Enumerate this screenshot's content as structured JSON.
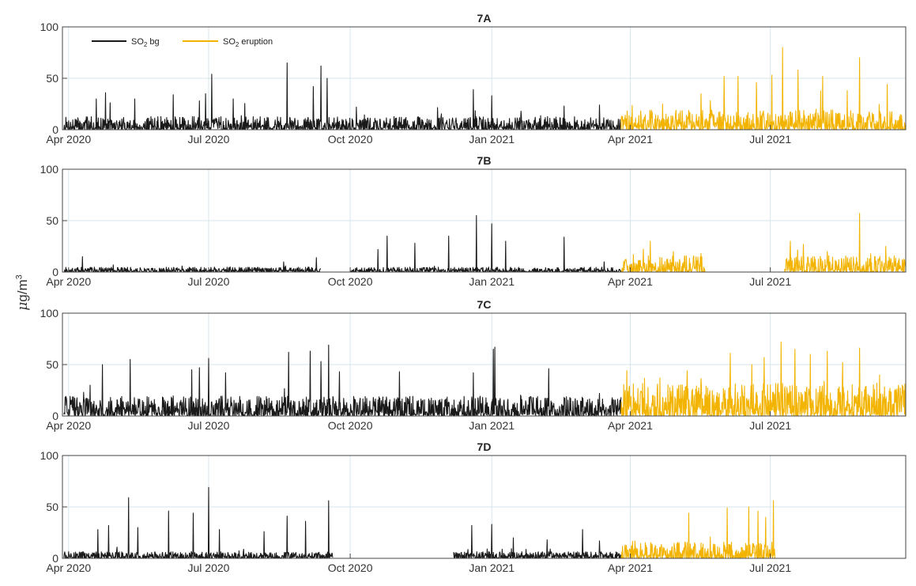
{
  "figure": {
    "ylabel_prefix": "μ",
    "ylabel_main": "g/m",
    "ylabel_sup": "3",
    "legend": {
      "bg_prefix": "SO",
      "bg_sub": "2",
      "bg_suffix": " bg",
      "eruption_prefix": "SO",
      "eruption_sub": "2",
      "eruption_suffix": " eruption"
    },
    "colors": {
      "bg": "#1a1a1a",
      "eruption": "#f2b400",
      "grid": "#d6e6ee",
      "axis": "#444444"
    }
  },
  "chart_data": [
    {
      "type": "line",
      "title": "7A",
      "ylim": [
        0,
        100
      ],
      "yticks": [
        0,
        50,
        100
      ],
      "xlim": [
        "2020-03-28",
        "2021-09-27"
      ],
      "xticks": [
        {
          "date": "2020-04-01",
          "label": "Apr 2020"
        },
        {
          "date": "2020-07-01",
          "label": "Jul 2020"
        },
        {
          "date": "2020-10-01",
          "label": "Oct 2020"
        },
        {
          "date": "2021-01-01",
          "label": "Jan 2021"
        },
        {
          "date": "2021-04-01",
          "label": "Apr 2021"
        },
        {
          "date": "2021-07-01",
          "label": "Jul 2021"
        }
      ],
      "grid": true,
      "legend_position": "top-left",
      "series": [
        {
          "name": "SO2 bg",
          "color": "#1a1a1a",
          "x_start": "2020-03-29",
          "x_end": "2021-03-26",
          "baseline": [
            0,
            8
          ],
          "gaps": [],
          "peaks": [
            [
              "2020-04-19",
              30
            ],
            [
              "2020-04-25",
              36
            ],
            [
              "2020-05-14",
              30
            ],
            [
              "2020-06-08",
              34
            ],
            [
              "2020-06-25",
              28
            ],
            [
              "2020-06-29",
              35
            ],
            [
              "2020-07-03",
              54
            ],
            [
              "2020-07-17",
              30
            ],
            [
              "2020-08-21",
              65
            ],
            [
              "2020-09-07",
              42
            ],
            [
              "2020-09-12",
              62
            ],
            [
              "2020-09-16",
              50
            ],
            [
              "2020-10-05",
              22
            ],
            [
              "2020-12-20",
              39
            ],
            [
              "2021-01-01",
              33
            ],
            [
              "2021-01-20",
              18
            ],
            [
              "2021-02-17",
              23
            ],
            [
              "2021-03-12",
              24
            ]
          ]
        },
        {
          "name": "SO2 eruption",
          "color": "#f2b400",
          "x_start": "2021-03-26",
          "x_end": "2021-09-27",
          "baseline": [
            0,
            12
          ],
          "gaps": [],
          "peaks": [
            [
              "2021-04-22",
              25
            ],
            [
              "2021-05-17",
              35
            ],
            [
              "2021-06-01",
              52
            ],
            [
              "2021-06-10",
              52
            ],
            [
              "2021-06-22",
              46
            ],
            [
              "2021-07-02",
              53
            ],
            [
              "2021-07-09",
              80
            ],
            [
              "2021-07-19",
              58
            ],
            [
              "2021-08-04",
              52
            ],
            [
              "2021-08-20",
              38
            ],
            [
              "2021-08-28",
              70
            ],
            [
              "2021-09-15",
              44
            ]
          ]
        }
      ]
    },
    {
      "type": "line",
      "title": "7B",
      "ylim": [
        0,
        100
      ],
      "yticks": [
        0,
        50,
        100
      ],
      "xlim": [
        "2020-03-28",
        "2021-09-27"
      ],
      "xticks": [
        {
          "date": "2020-04-01",
          "label": "Apr 2020"
        },
        {
          "date": "2020-07-01",
          "label": "Jul 2020"
        },
        {
          "date": "2020-10-01",
          "label": "Oct 2020"
        },
        {
          "date": "2021-01-01",
          "label": "Jan 2021"
        },
        {
          "date": "2021-04-01",
          "label": "Apr 2021"
        },
        {
          "date": "2021-07-01",
          "label": "Jul 2021"
        }
      ],
      "grid": true,
      "series": [
        {
          "name": "SO2 bg",
          "color": "#1a1a1a",
          "x_start": "2020-03-29",
          "x_end": "2021-03-26",
          "baseline": [
            0,
            3
          ],
          "gaps": [
            [
              "2020-09-12",
              "2020-10-01"
            ]
          ],
          "peaks": [
            [
              "2020-04-10",
              15
            ],
            [
              "2020-04-30",
              7
            ],
            [
              "2020-07-15",
              5
            ],
            [
              "2020-08-20",
              6
            ],
            [
              "2020-09-09",
              14
            ],
            [
              "2020-10-19",
              22
            ],
            [
              "2020-10-25",
              35
            ],
            [
              "2020-11-12",
              28
            ],
            [
              "2020-12-04",
              35
            ],
            [
              "2020-12-22",
              55
            ],
            [
              "2021-01-01",
              47
            ],
            [
              "2021-01-10",
              30
            ],
            [
              "2021-02-17",
              34
            ],
            [
              "2021-03-15",
              10
            ]
          ]
        },
        {
          "name": "SO2 eruption",
          "color": "#f2b400",
          "x_start": "2021-03-26",
          "x_end": "2021-09-27",
          "baseline": [
            0,
            10
          ],
          "gaps": [
            [
              "2021-05-20",
              "2021-07-10"
            ]
          ],
          "peaks": [
            [
              "2021-04-03",
              17
            ],
            [
              "2021-04-14",
              30
            ],
            [
              "2021-04-29",
              20
            ],
            [
              "2021-05-17",
              18
            ],
            [
              "2021-07-14",
              30
            ],
            [
              "2021-08-07",
              20
            ],
            [
              "2021-08-28",
              57
            ],
            [
              "2021-09-14",
              25
            ]
          ]
        }
      ]
    },
    {
      "type": "line",
      "title": "7C",
      "ylim": [
        0,
        100
      ],
      "yticks": [
        0,
        50,
        100
      ],
      "xlim": [
        "2020-03-28",
        "2021-09-27"
      ],
      "xticks": [
        {
          "date": "2020-04-01",
          "label": "Apr 2020"
        },
        {
          "date": "2020-07-01",
          "label": "Jul 2020"
        },
        {
          "date": "2020-10-01",
          "label": "Oct 2020"
        },
        {
          "date": "2021-01-01",
          "label": "Jan 2021"
        },
        {
          "date": "2021-04-01",
          "label": "Apr 2021"
        },
        {
          "date": "2021-07-01",
          "label": "Jul 2021"
        }
      ],
      "grid": true,
      "series": [
        {
          "name": "SO2 bg",
          "color": "#1a1a1a",
          "x_start": "2020-03-29",
          "x_end": "2021-03-26",
          "baseline": [
            0,
            12
          ],
          "gaps": [],
          "peaks": [
            [
              "2020-04-15",
              30
            ],
            [
              "2020-04-23",
              50
            ],
            [
              "2020-05-11",
              55
            ],
            [
              "2020-06-20",
              45
            ],
            [
              "2020-06-25",
              47
            ],
            [
              "2020-07-01",
              56
            ],
            [
              "2020-07-12",
              42
            ],
            [
              "2020-08-22",
              62
            ],
            [
              "2020-09-05",
              63
            ],
            [
              "2020-09-12",
              53
            ],
            [
              "2020-09-17",
              69
            ],
            [
              "2020-09-24",
              43
            ],
            [
              "2020-11-02",
              43
            ],
            [
              "2020-12-20",
              42
            ],
            [
              "2021-01-02",
              65
            ],
            [
              "2021-01-03",
              67
            ],
            [
              "2021-02-07",
              46
            ],
            [
              "2021-03-12",
              22
            ]
          ]
        },
        {
          "name": "SO2 eruption",
          "color": "#f2b400",
          "x_start": "2021-03-26",
          "x_end": "2021-09-27",
          "baseline": [
            0,
            20
          ],
          "gaps": [],
          "peaks": [
            [
              "2021-04-05",
              12
            ],
            [
              "2021-04-22",
              18
            ],
            [
              "2021-05-08",
              44
            ],
            [
              "2021-05-15",
              24
            ],
            [
              "2021-06-05",
              61
            ],
            [
              "2021-06-19",
              50
            ],
            [
              "2021-06-27",
              57
            ],
            [
              "2021-07-08",
              72
            ],
            [
              "2021-07-17",
              65
            ],
            [
              "2021-07-27",
              60
            ],
            [
              "2021-08-07",
              63
            ],
            [
              "2021-08-17",
              52
            ],
            [
              "2021-08-28",
              66
            ],
            [
              "2021-09-10",
              40
            ]
          ]
        }
      ]
    },
    {
      "type": "line",
      "title": "7D",
      "ylim": [
        0,
        100
      ],
      "yticks": [
        0,
        50,
        100
      ],
      "xlim": [
        "2020-03-28",
        "2021-09-27"
      ],
      "xticks": [
        {
          "date": "2020-04-01",
          "label": "Apr 2020"
        },
        {
          "date": "2020-07-01",
          "label": "Jul 2020"
        },
        {
          "date": "2020-10-01",
          "label": "Oct 2020"
        },
        {
          "date": "2021-01-01",
          "label": "Jan 2021"
        },
        {
          "date": "2021-04-01",
          "label": "Apr 2021"
        },
        {
          "date": "2021-07-01",
          "label": "Jul 2021"
        }
      ],
      "grid": true,
      "series": [
        {
          "name": "SO2 bg",
          "color": "#1a1a1a",
          "x_start": "2020-03-29",
          "x_end": "2021-03-26",
          "baseline": [
            0,
            4
          ],
          "gaps": [
            [
              "2020-09-20",
              "2020-12-07"
            ]
          ],
          "peaks": [
            [
              "2020-04-20",
              28
            ],
            [
              "2020-04-27",
              32
            ],
            [
              "2020-05-10",
              59
            ],
            [
              "2020-05-16",
              30
            ],
            [
              "2020-06-05",
              46
            ],
            [
              "2020-06-21",
              44
            ],
            [
              "2020-07-01",
              69
            ],
            [
              "2020-07-08",
              28
            ],
            [
              "2020-08-06",
              26
            ],
            [
              "2020-08-21",
              41
            ],
            [
              "2020-09-02",
              36
            ],
            [
              "2020-09-17",
              56
            ],
            [
              "2020-12-19",
              32
            ],
            [
              "2021-01-01",
              33
            ],
            [
              "2021-01-15",
              20
            ],
            [
              "2021-02-06",
              18
            ],
            [
              "2021-03-01",
              28
            ],
            [
              "2021-03-12",
              17
            ]
          ]
        },
        {
          "name": "SO2 eruption",
          "color": "#f2b400",
          "x_start": "2021-03-26",
          "x_end": "2021-07-04",
          "baseline": [
            0,
            10
          ],
          "gaps": [],
          "peaks": [
            [
              "2021-04-04",
              17
            ],
            [
              "2021-04-23",
              10
            ],
            [
              "2021-05-09",
              44
            ],
            [
              "2021-06-03",
              49
            ],
            [
              "2021-06-17",
              50
            ],
            [
              "2021-06-23",
              46
            ],
            [
              "2021-06-28",
              40
            ],
            [
              "2021-07-03",
              56
            ]
          ]
        }
      ]
    }
  ]
}
